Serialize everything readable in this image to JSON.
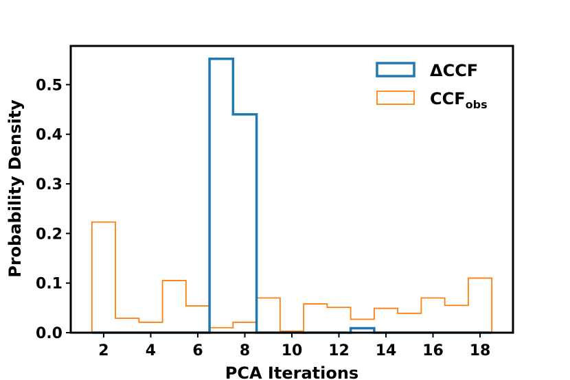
{
  "chart_data": {
    "type": "histogram",
    "title": "",
    "xlabel": "PCA Iterations",
    "ylabel": "Probability Density",
    "xlim": [
      0.6,
      19.4
    ],
    "ylim": [
      0,
      0.578
    ],
    "xticks": [
      2,
      4,
      6,
      8,
      10,
      12,
      14,
      16,
      18
    ],
    "xtick_labels": [
      "2",
      "4",
      "6",
      "8",
      "10",
      "12",
      "14",
      "16",
      "18"
    ],
    "yticks": [
      0.0,
      0.1,
      0.2,
      0.3,
      0.4,
      0.5
    ],
    "ytick_labels": [
      "0.0",
      "0.1",
      "0.2",
      "0.3",
      "0.4",
      "0.5"
    ],
    "bin_edges": [
      1.5,
      2.5,
      3.5,
      4.5,
      5.5,
      6.5,
      7.5,
      8.5,
      9.5,
      10.5,
      11.5,
      12.5,
      13.5,
      14.5,
      15.5,
      16.5,
      17.5,
      18.5
    ],
    "legend_position": "upper right",
    "series": [
      {
        "name": "ΔCCF",
        "name_main": "ΔCCF",
        "name_sub": "",
        "color": "#1f77b4",
        "linewidth": "thick",
        "values": [
          0,
          0,
          0,
          0,
          0,
          0.552,
          0.44,
          0,
          0,
          0,
          0,
          0.009,
          0,
          0,
          0,
          0,
          0
        ]
      },
      {
        "name": "CCF_obs",
        "name_main": "CCF",
        "name_sub": "obs",
        "color": "#ff7f0e",
        "linewidth": "thin",
        "values": [
          0.223,
          0.029,
          0.021,
          0.105,
          0.054,
          0.01,
          0.021,
          0.07,
          0.003,
          0.058,
          0.051,
          0.027,
          0.049,
          0.039,
          0.07,
          0.055,
          0.11
        ]
      }
    ]
  }
}
